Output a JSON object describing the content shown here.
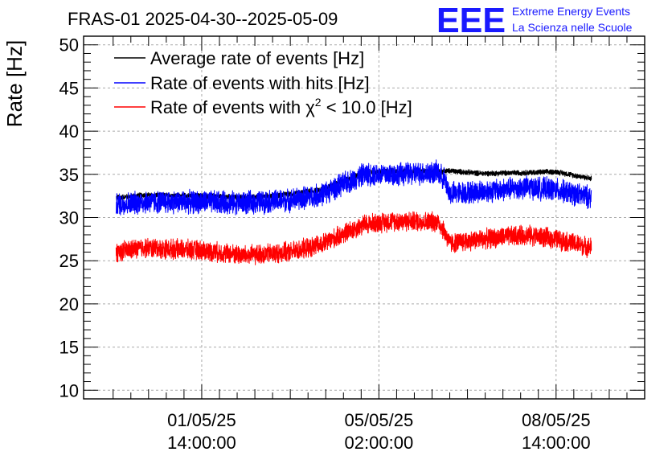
{
  "chart_data": {
    "type": "line",
    "title": "FRAS-01 2025-04-30--2025-05-09",
    "ylabel": "Rate [Hz]",
    "xlabel": "",
    "ylim": [
      9,
      51
    ],
    "yticks": [
      10,
      15,
      20,
      25,
      30,
      35,
      40,
      45,
      50
    ],
    "xlim_hours": [
      0,
      190
    ],
    "x_tick_labels": [
      {
        "hour": 40,
        "date": "01/05/25",
        "time": "14:00:00"
      },
      {
        "hour": 100,
        "date": "05/05/25",
        "time": "02:00:00"
      },
      {
        "hour": 160,
        "date": "08/05/25",
        "time": "14:00:00"
      }
    ],
    "x_start_hour": 11,
    "x_end_hour": 172,
    "legend_position": "top-left",
    "series": [
      {
        "name": "Average rate of events [Hz]",
        "color": "#000000",
        "noise": 0.35,
        "control_hours": [
          11,
          20,
          40,
          55,
          70,
          80,
          95,
          105,
          120,
          124,
          135,
          150,
          160,
          172
        ],
        "control_values": [
          32.3,
          32.6,
          32.5,
          32.3,
          32.7,
          33.2,
          35.2,
          35.4,
          35.3,
          35.4,
          35.1,
          35.2,
          35.3,
          34.5
        ]
      },
      {
        "name": "Rate of events with hits [Hz]",
        "color": "#0000ff",
        "noise": 1.5,
        "control_hours": [
          11,
          20,
          40,
          55,
          70,
          80,
          95,
          105,
          120,
          122,
          124,
          135,
          150,
          160,
          172
        ],
        "control_values": [
          31.5,
          31.8,
          31.8,
          31.7,
          32.0,
          32.6,
          35.0,
          35.0,
          35.2,
          34.5,
          32.8,
          33.0,
          33.5,
          33.2,
          32.3
        ]
      },
      {
        "name": "Rate of events with",
        "name_sym": "χ",
        "name_sup": "2",
        "name_rest": " < 10.0 [Hz]",
        "color": "#ff0000",
        "noise": 1.3,
        "control_hours": [
          11,
          20,
          40,
          55,
          70,
          80,
          95,
          105,
          120,
          122,
          124,
          135,
          150,
          160,
          172
        ],
        "control_values": [
          26.0,
          26.5,
          26.2,
          25.6,
          26.0,
          26.8,
          29.2,
          29.6,
          29.5,
          28.5,
          27.0,
          27.5,
          28.0,
          27.5,
          26.5
        ]
      }
    ]
  },
  "logo": {
    "mark": "EEE",
    "line1": "Extreme Energy Events",
    "line2": "La Scienza nelle Scuole"
  }
}
